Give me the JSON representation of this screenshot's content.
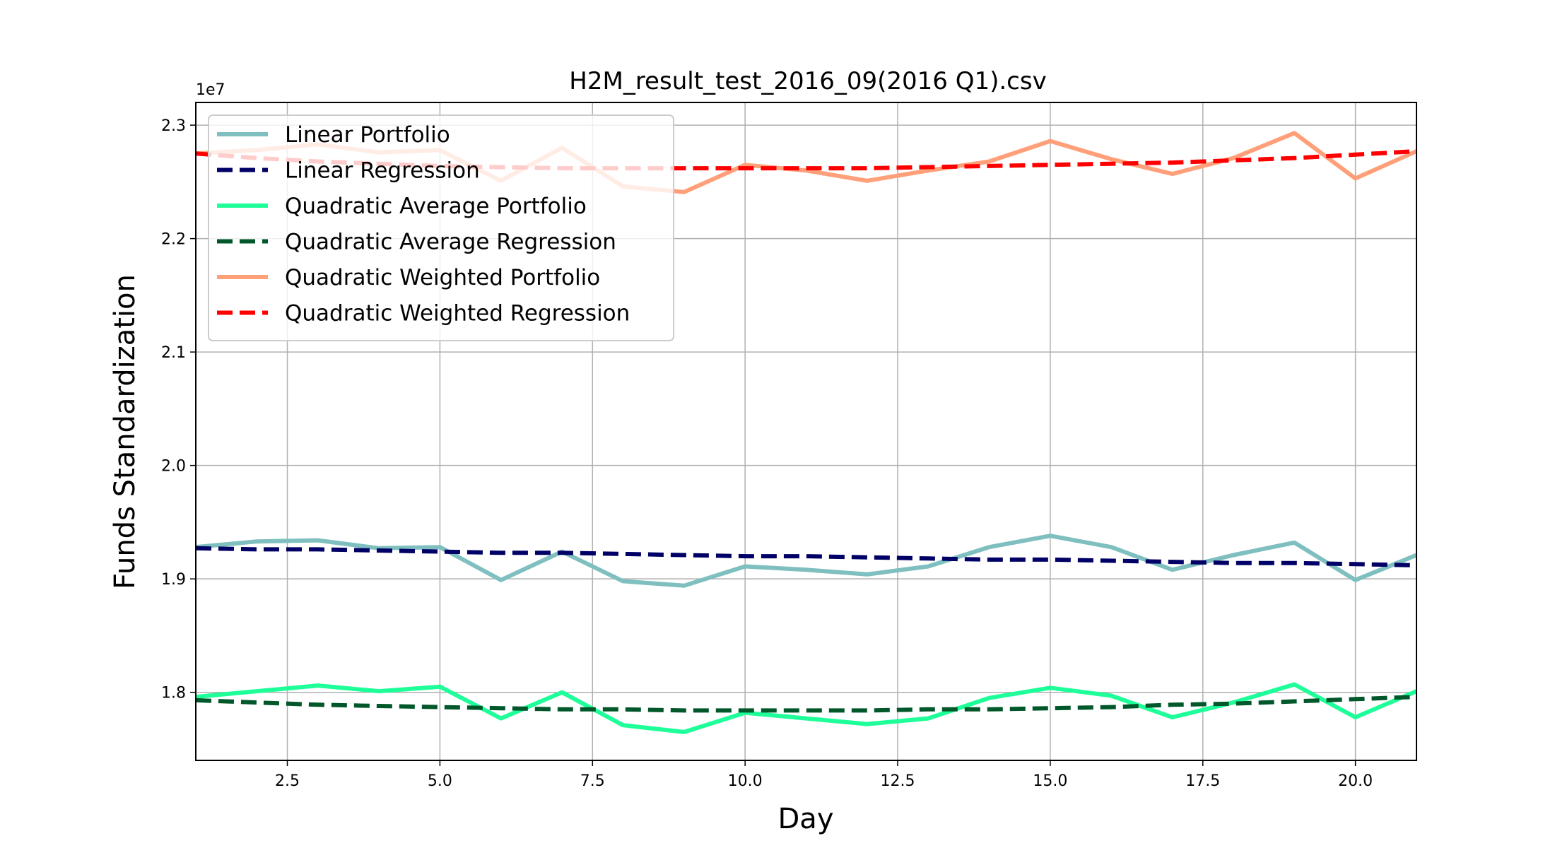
{
  "chart_data": {
    "type": "line",
    "title": "H2M_result_test_2016_09(2016 Q1).csv",
    "xlabel": "Day",
    "ylabel": "Funds Standardization",
    "y_offset_label": "1e7",
    "xlim": [
      1,
      21
    ],
    "ylim": [
      1.74,
      2.32
    ],
    "x_ticks": [
      2.5,
      5.0,
      7.5,
      10.0,
      12.5,
      15.0,
      17.5,
      20.0
    ],
    "x_tick_labels": [
      "2.5",
      "5.0",
      "7.5",
      "10.0",
      "12.5",
      "15.0",
      "17.5",
      "20.0"
    ],
    "y_ticks": [
      1.8,
      1.9,
      2.0,
      2.1,
      2.2,
      2.3
    ],
    "y_tick_labels": [
      "1.8",
      "1.9",
      "2.0",
      "2.1",
      "2.2",
      "2.3"
    ],
    "grid": true,
    "legend_position": "top-left",
    "x": [
      1,
      2,
      3,
      4,
      5,
      6,
      7,
      8,
      9,
      10,
      11,
      12,
      13,
      14,
      15,
      16,
      17,
      18,
      19,
      20,
      21
    ],
    "series": [
      {
        "name": "Linear Portfolio",
        "style": "solid",
        "color": "#7fbfbf",
        "values": [
          1.928,
          1.933,
          1.934,
          1.927,
          1.928,
          1.899,
          1.924,
          1.898,
          1.894,
          1.911,
          1.908,
          1.904,
          1.911,
          1.928,
          1.938,
          1.928,
          1.908,
          1.921,
          1.932,
          1.899,
          1.921
        ]
      },
      {
        "name": "Linear Regression",
        "style": "dashed",
        "color": "#000066",
        "values": [
          1.927,
          1.926,
          1.926,
          1.925,
          1.924,
          1.923,
          1.923,
          1.922,
          1.921,
          1.92,
          1.92,
          1.919,
          1.918,
          1.917,
          1.917,
          1.916,
          1.915,
          1.914,
          1.914,
          1.913,
          1.912
        ]
      },
      {
        "name": "Quadratic Average Portfolio",
        "style": "solid",
        "color": "#1eff99",
        "values": [
          1.796,
          1.801,
          1.806,
          1.801,
          1.805,
          1.777,
          1.8,
          1.771,
          1.765,
          1.782,
          1.777,
          1.772,
          1.777,
          1.795,
          1.804,
          1.797,
          1.778,
          1.791,
          1.807,
          1.778,
          1.801
        ]
      },
      {
        "name": "Quadratic Average Regression",
        "style": "dashed",
        "color": "#00582a",
        "values": [
          1.793,
          1.791,
          1.789,
          1.788,
          1.787,
          1.786,
          1.785,
          1.785,
          1.784,
          1.784,
          1.784,
          1.784,
          1.785,
          1.785,
          1.786,
          1.787,
          1.789,
          1.79,
          1.792,
          1.794,
          1.796
        ]
      },
      {
        "name": "Quadratic Weighted Portfolio",
        "style": "solid",
        "color": "#ffa07a",
        "values": [
          2.275,
          2.278,
          2.283,
          2.276,
          2.278,
          2.251,
          2.28,
          2.246,
          2.241,
          2.265,
          2.26,
          2.251,
          2.26,
          2.268,
          2.286,
          2.27,
          2.257,
          2.271,
          2.293,
          2.253,
          2.277
        ]
      },
      {
        "name": "Quadratic Weighted Regression",
        "style": "dashed",
        "color": "#ff0000",
        "values": [
          2.275,
          2.271,
          2.268,
          2.266,
          2.264,
          2.263,
          2.262,
          2.262,
          2.262,
          2.262,
          2.262,
          2.262,
          2.263,
          2.264,
          2.265,
          2.266,
          2.267,
          2.269,
          2.271,
          2.274,
          2.277
        ]
      }
    ]
  }
}
